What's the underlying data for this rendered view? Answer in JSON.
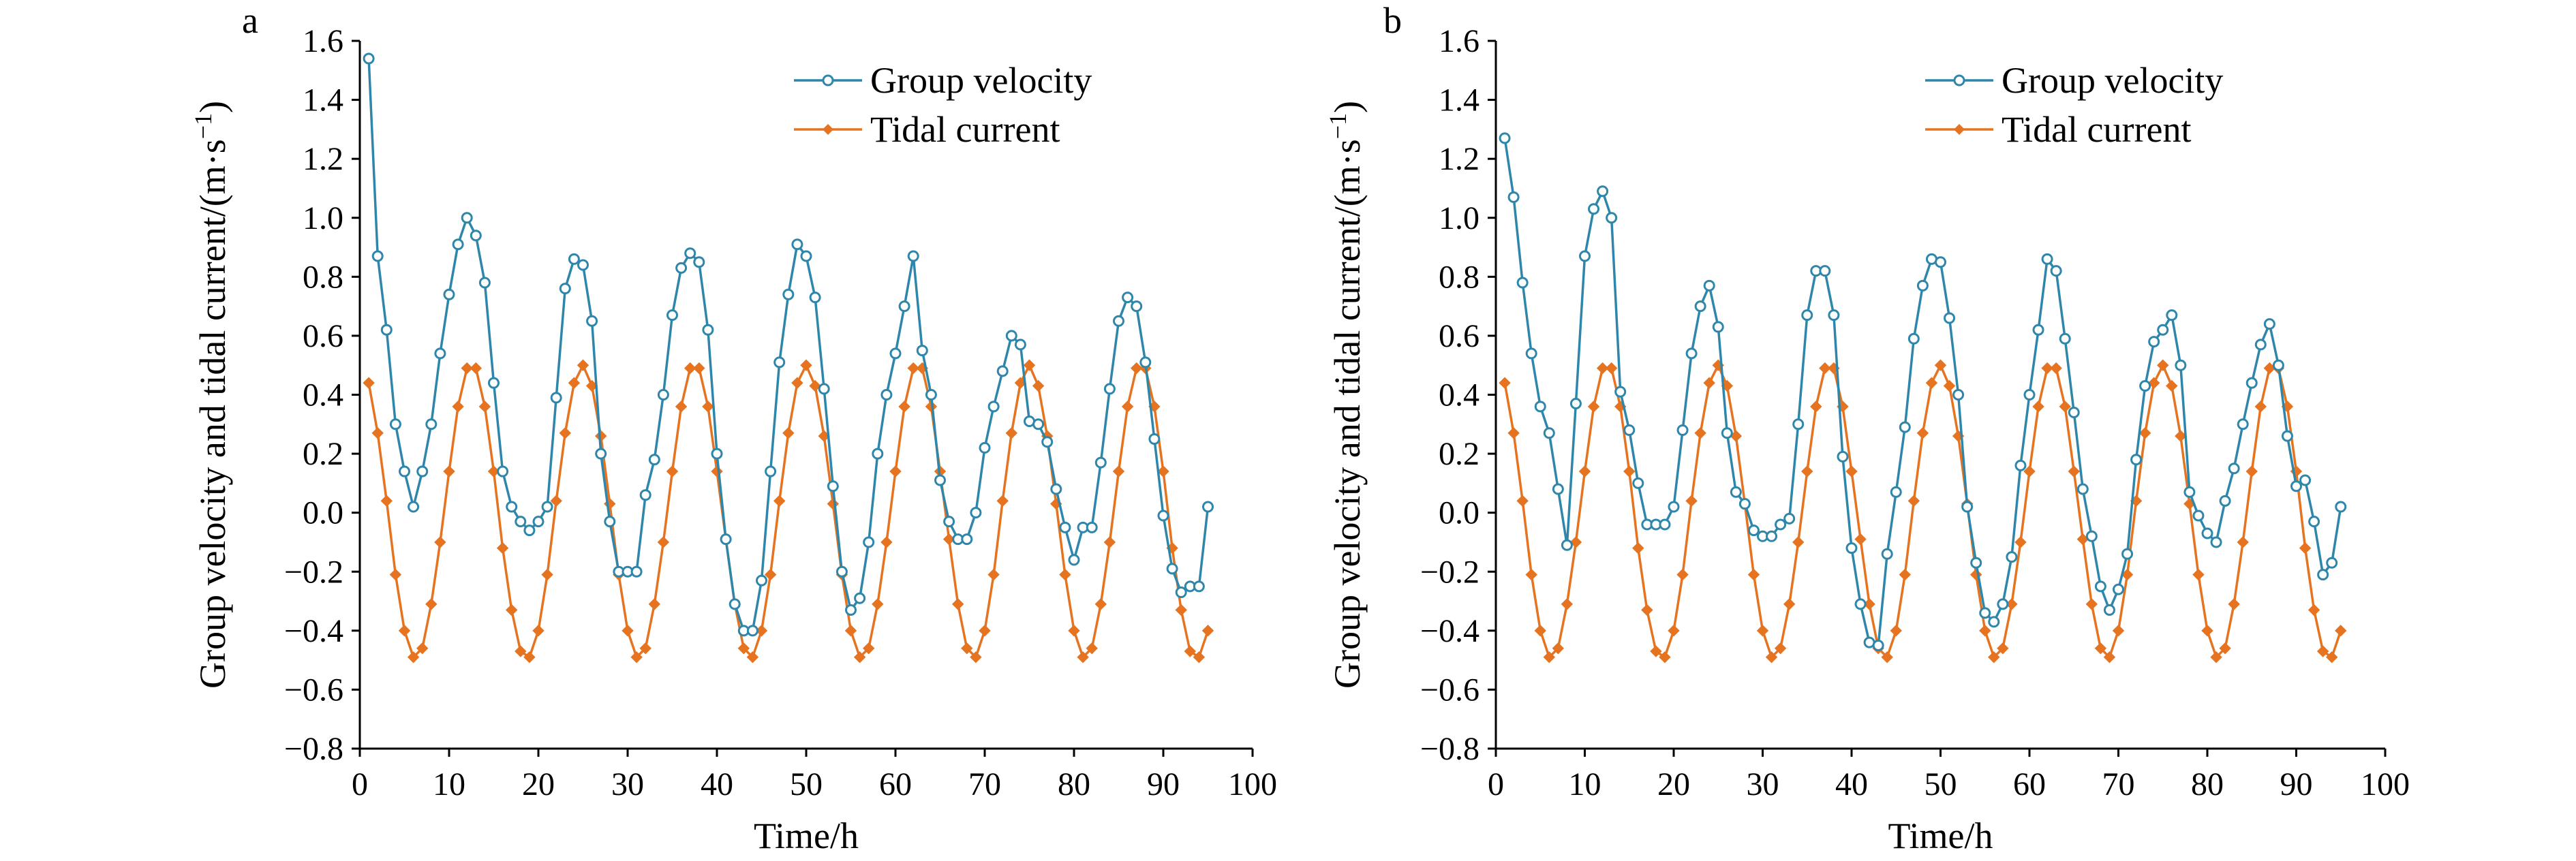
{
  "colors": {
    "group_velocity": "#2e86ab",
    "tidal_current": "#e5731f",
    "axis": "#000000",
    "background": "#ffffff"
  },
  "chart_data": [
    {
      "panel_label": "a",
      "type": "line",
      "xlabel": "Time/h",
      "ylabel": "Group velocity and tidal current/(m·s",
      "ylabel_exp": "−1",
      "ylabel_close": ")",
      "xlim": [
        0,
        100
      ],
      "ylim": [
        -0.8,
        1.6
      ],
      "xticks": [
        0,
        10,
        20,
        30,
        40,
        50,
        60,
        70,
        80,
        90,
        100
      ],
      "yticks": [
        -0.8,
        -0.6,
        -0.4,
        -0.2,
        0.0,
        0.2,
        0.4,
        0.6,
        0.8,
        1.0,
        1.2,
        1.4,
        1.6
      ],
      "xtick_labels": [
        "0",
        "10",
        "20",
        "30",
        "40",
        "50",
        "60",
        "70",
        "80",
        "90",
        "100"
      ],
      "ytick_labels": [
        "−0.8",
        "−0.6",
        "−0.4",
        "−0.2",
        "0.0",
        "0.2",
        "0.4",
        "0.6",
        "0.8",
        "1.0",
        "1.2",
        "1.4",
        "1.6"
      ],
      "grid": false,
      "legend_position": "top-right",
      "series": [
        {
          "name": "Group velocity",
          "marker": "open-circle",
          "color": "#2e86ab",
          "x": [
            1,
            2,
            3,
            4,
            5,
            6,
            7,
            8,
            9,
            10,
            11,
            12,
            13,
            14,
            15,
            16,
            17,
            18,
            19,
            20,
            21,
            22,
            23,
            24,
            25,
            26,
            27,
            28,
            29,
            30,
            31,
            32,
            33,
            34,
            35,
            36,
            37,
            38,
            39,
            40,
            41,
            42,
            43,
            44,
            45,
            46,
            47,
            48,
            49,
            50,
            51,
            52,
            53,
            54,
            55,
            56,
            57,
            58,
            59,
            60,
            61,
            62,
            63,
            64,
            65,
            66,
            67,
            68,
            69,
            70,
            71,
            72,
            73,
            74,
            75,
            76,
            77,
            78,
            79,
            80,
            81,
            82,
            83,
            84,
            85,
            86,
            87,
            88,
            89,
            90,
            91,
            92,
            93,
            94,
            95
          ],
          "y": [
            1.54,
            0.87,
            0.62,
            0.3,
            0.14,
            0.02,
            0.14,
            0.3,
            0.54,
            0.74,
            0.91,
            1.0,
            0.94,
            0.78,
            0.44,
            0.14,
            0.02,
            -0.03,
            -0.06,
            -0.03,
            0.02,
            0.39,
            0.76,
            0.86,
            0.84,
            0.65,
            0.2,
            -0.03,
            -0.2,
            -0.2,
            -0.2,
            0.06,
            0.18,
            0.4,
            0.67,
            0.83,
            0.88,
            0.85,
            0.62,
            0.2,
            -0.09,
            -0.31,
            -0.4,
            -0.4,
            -0.23,
            0.14,
            0.51,
            0.74,
            0.91,
            0.87,
            0.73,
            0.42,
            0.09,
            -0.2,
            -0.33,
            -0.29,
            -0.1,
            0.2,
            0.4,
            0.54,
            0.7,
            0.87,
            0.55,
            0.4,
            0.11,
            -0.03,
            -0.09,
            -0.09,
            0.0,
            0.22,
            0.36,
            0.48,
            0.6,
            0.57,
            0.31,
            0.3,
            0.24,
            0.08,
            -0.05,
            -0.16,
            -0.05,
            -0.05,
            0.17,
            0.42,
            0.65,
            0.73,
            0.7,
            0.51,
            0.25,
            -0.01,
            -0.19,
            -0.27,
            -0.25,
            -0.25,
            0.02
          ]
        },
        {
          "name": "Tidal current",
          "marker": "filled-diamond",
          "color": "#e5731f",
          "x": [
            1,
            2,
            3,
            4,
            5,
            6,
            7,
            8,
            9,
            10,
            11,
            12,
            13,
            14,
            15,
            16,
            17,
            18,
            19,
            20,
            21,
            22,
            23,
            24,
            25,
            26,
            27,
            28,
            29,
            30,
            31,
            32,
            33,
            34,
            35,
            36,
            37,
            38,
            39,
            40,
            41,
            42,
            43,
            44,
            45,
            46,
            47,
            48,
            49,
            50,
            51,
            52,
            53,
            54,
            55,
            56,
            57,
            58,
            59,
            60,
            61,
            62,
            63,
            64,
            65,
            66,
            67,
            68,
            69,
            70,
            71,
            72,
            73,
            74,
            75,
            76,
            77,
            78,
            79,
            80,
            81,
            82,
            83,
            84,
            85,
            86,
            87,
            88,
            89,
            90,
            91,
            92,
            93,
            94,
            95
          ],
          "y": [
            0.44,
            0.27,
            0.04,
            -0.21,
            -0.4,
            -0.49,
            -0.46,
            -0.31,
            -0.1,
            0.14,
            0.36,
            0.49,
            0.49,
            0.36,
            0.14,
            -0.12,
            -0.33,
            -0.47,
            -0.49,
            -0.4,
            -0.21,
            0.04,
            0.27,
            0.44,
            0.5,
            0.43,
            0.26,
            0.03,
            -0.21,
            -0.4,
            -0.49,
            -0.46,
            -0.31,
            -0.1,
            0.14,
            0.36,
            0.49,
            0.49,
            0.36,
            0.14,
            -0.09,
            -0.31,
            -0.46,
            -0.49,
            -0.4,
            -0.21,
            0.04,
            0.27,
            0.44,
            0.5,
            0.43,
            0.26,
            0.03,
            -0.21,
            -0.4,
            -0.49,
            -0.46,
            -0.31,
            -0.1,
            0.14,
            0.36,
            0.49,
            0.49,
            0.36,
            0.14,
            -0.09,
            -0.31,
            -0.46,
            -0.49,
            -0.4,
            -0.21,
            0.04,
            0.27,
            0.44,
            0.5,
            0.43,
            0.26,
            0.03,
            -0.21,
            -0.4,
            -0.49,
            -0.46,
            -0.31,
            -0.1,
            0.14,
            0.36,
            0.49,
            0.49,
            0.36,
            0.14,
            -0.12,
            -0.33,
            -0.47,
            -0.49,
            -0.4
          ]
        }
      ]
    },
    {
      "panel_label": "b",
      "type": "line",
      "xlabel": "Time/h",
      "ylabel": "Group velocity and tidal current/(m·s",
      "ylabel_exp": "−1",
      "ylabel_close": ")",
      "xlim": [
        0,
        100
      ],
      "ylim": [
        -0.8,
        1.6
      ],
      "xticks": [
        0,
        10,
        20,
        30,
        40,
        50,
        60,
        70,
        80,
        90,
        100
      ],
      "yticks": [
        -0.8,
        -0.6,
        -0.4,
        -0.2,
        0.0,
        0.2,
        0.4,
        0.6,
        0.8,
        1.0,
        1.2,
        1.4,
        1.6
      ],
      "xtick_labels": [
        "0",
        "10",
        "20",
        "30",
        "40",
        "50",
        "60",
        "70",
        "80",
        "90",
        "100"
      ],
      "ytick_labels": [
        "−0.8",
        "−0.6",
        "−0.4",
        "−0.2",
        "0.0",
        "0.2",
        "0.4",
        "0.6",
        "0.8",
        "1.0",
        "1.2",
        "1.4",
        "1.6"
      ],
      "grid": false,
      "legend_position": "top-right",
      "series": [
        {
          "name": "Group velocity",
          "marker": "open-circle",
          "color": "#2e86ab",
          "x": [
            1,
            2,
            3,
            4,
            5,
            6,
            7,
            8,
            9,
            10,
            11,
            12,
            13,
            14,
            15,
            16,
            17,
            18,
            19,
            20,
            21,
            22,
            23,
            24,
            25,
            26,
            27,
            28,
            29,
            30,
            31,
            32,
            33,
            34,
            35,
            36,
            37,
            38,
            39,
            40,
            41,
            42,
            43,
            44,
            45,
            46,
            47,
            48,
            49,
            50,
            51,
            52,
            53,
            54,
            55,
            56,
            57,
            58,
            59,
            60,
            61,
            62,
            63,
            64,
            65,
            66,
            67,
            68,
            69,
            70,
            71,
            72,
            73,
            74,
            75,
            76,
            77,
            78,
            79,
            80,
            81,
            82,
            83,
            84,
            85,
            86,
            87,
            88,
            89,
            90,
            91,
            92,
            93,
            94,
            95
          ],
          "y": [
            1.27,
            1.07,
            0.78,
            0.54,
            0.36,
            0.27,
            0.08,
            -0.11,
            0.37,
            0.87,
            1.03,
            1.09,
            1.0,
            0.41,
            0.28,
            0.1,
            -0.04,
            -0.04,
            -0.04,
            0.02,
            0.28,
            0.54,
            0.7,
            0.77,
            0.63,
            0.27,
            0.07,
            0.03,
            -0.06,
            -0.08,
            -0.08,
            -0.04,
            -0.02,
            0.3,
            0.67,
            0.82,
            0.82,
            0.67,
            0.19,
            -0.12,
            -0.31,
            -0.44,
            -0.45,
            -0.14,
            0.07,
            0.29,
            0.59,
            0.77,
            0.86,
            0.85,
            0.66,
            0.4,
            0.02,
            -0.17,
            -0.34,
            -0.37,
            -0.31,
            -0.15,
            0.16,
            0.4,
            0.62,
            0.86,
            0.82,
            0.59,
            0.34,
            0.08,
            -0.08,
            -0.25,
            -0.33,
            -0.26,
            -0.14,
            0.18,
            0.43,
            0.58,
            0.62,
            0.67,
            0.5,
            0.07,
            -0.01,
            -0.07,
            -0.1,
            0.04,
            0.15,
            0.3,
            0.44,
            0.57,
            0.64,
            0.5,
            0.26,
            0.09,
            0.11,
            -0.03,
            -0.21,
            -0.17,
            0.02
          ]
        },
        {
          "name": "Tidal current",
          "marker": "filled-diamond",
          "color": "#e5731f",
          "x": [
            1,
            2,
            3,
            4,
            5,
            6,
            7,
            8,
            9,
            10,
            11,
            12,
            13,
            14,
            15,
            16,
            17,
            18,
            19,
            20,
            21,
            22,
            23,
            24,
            25,
            26,
            27,
            28,
            29,
            30,
            31,
            32,
            33,
            34,
            35,
            36,
            37,
            38,
            39,
            40,
            41,
            42,
            43,
            44,
            45,
            46,
            47,
            48,
            49,
            50,
            51,
            52,
            53,
            54,
            55,
            56,
            57,
            58,
            59,
            60,
            61,
            62,
            63,
            64,
            65,
            66,
            67,
            68,
            69,
            70,
            71,
            72,
            73,
            74,
            75,
            76,
            77,
            78,
            79,
            80,
            81,
            82,
            83,
            84,
            85,
            86,
            87,
            88,
            89,
            90,
            91,
            92,
            93,
            94,
            95
          ],
          "y": [
            0.44,
            0.27,
            0.04,
            -0.21,
            -0.4,
            -0.49,
            -0.46,
            -0.31,
            -0.1,
            0.14,
            0.36,
            0.49,
            0.49,
            0.36,
            0.14,
            -0.12,
            -0.33,
            -0.47,
            -0.49,
            -0.4,
            -0.21,
            0.04,
            0.27,
            0.44,
            0.5,
            0.43,
            0.26,
            0.03,
            -0.21,
            -0.4,
            -0.49,
            -0.46,
            -0.31,
            -0.1,
            0.14,
            0.36,
            0.49,
            0.49,
            0.36,
            0.14,
            -0.09,
            -0.31,
            -0.46,
            -0.49,
            -0.4,
            -0.21,
            0.04,
            0.27,
            0.44,
            0.5,
            0.43,
            0.26,
            0.03,
            -0.21,
            -0.4,
            -0.49,
            -0.46,
            -0.31,
            -0.1,
            0.14,
            0.36,
            0.49,
            0.49,
            0.36,
            0.14,
            -0.09,
            -0.31,
            -0.46,
            -0.49,
            -0.4,
            -0.21,
            0.04,
            0.27,
            0.44,
            0.5,
            0.43,
            0.26,
            0.03,
            -0.21,
            -0.4,
            -0.49,
            -0.46,
            -0.31,
            -0.1,
            0.14,
            0.36,
            0.49,
            0.49,
            0.36,
            0.14,
            -0.12,
            -0.33,
            -0.47,
            -0.49,
            -0.4
          ]
        }
      ]
    }
  ]
}
